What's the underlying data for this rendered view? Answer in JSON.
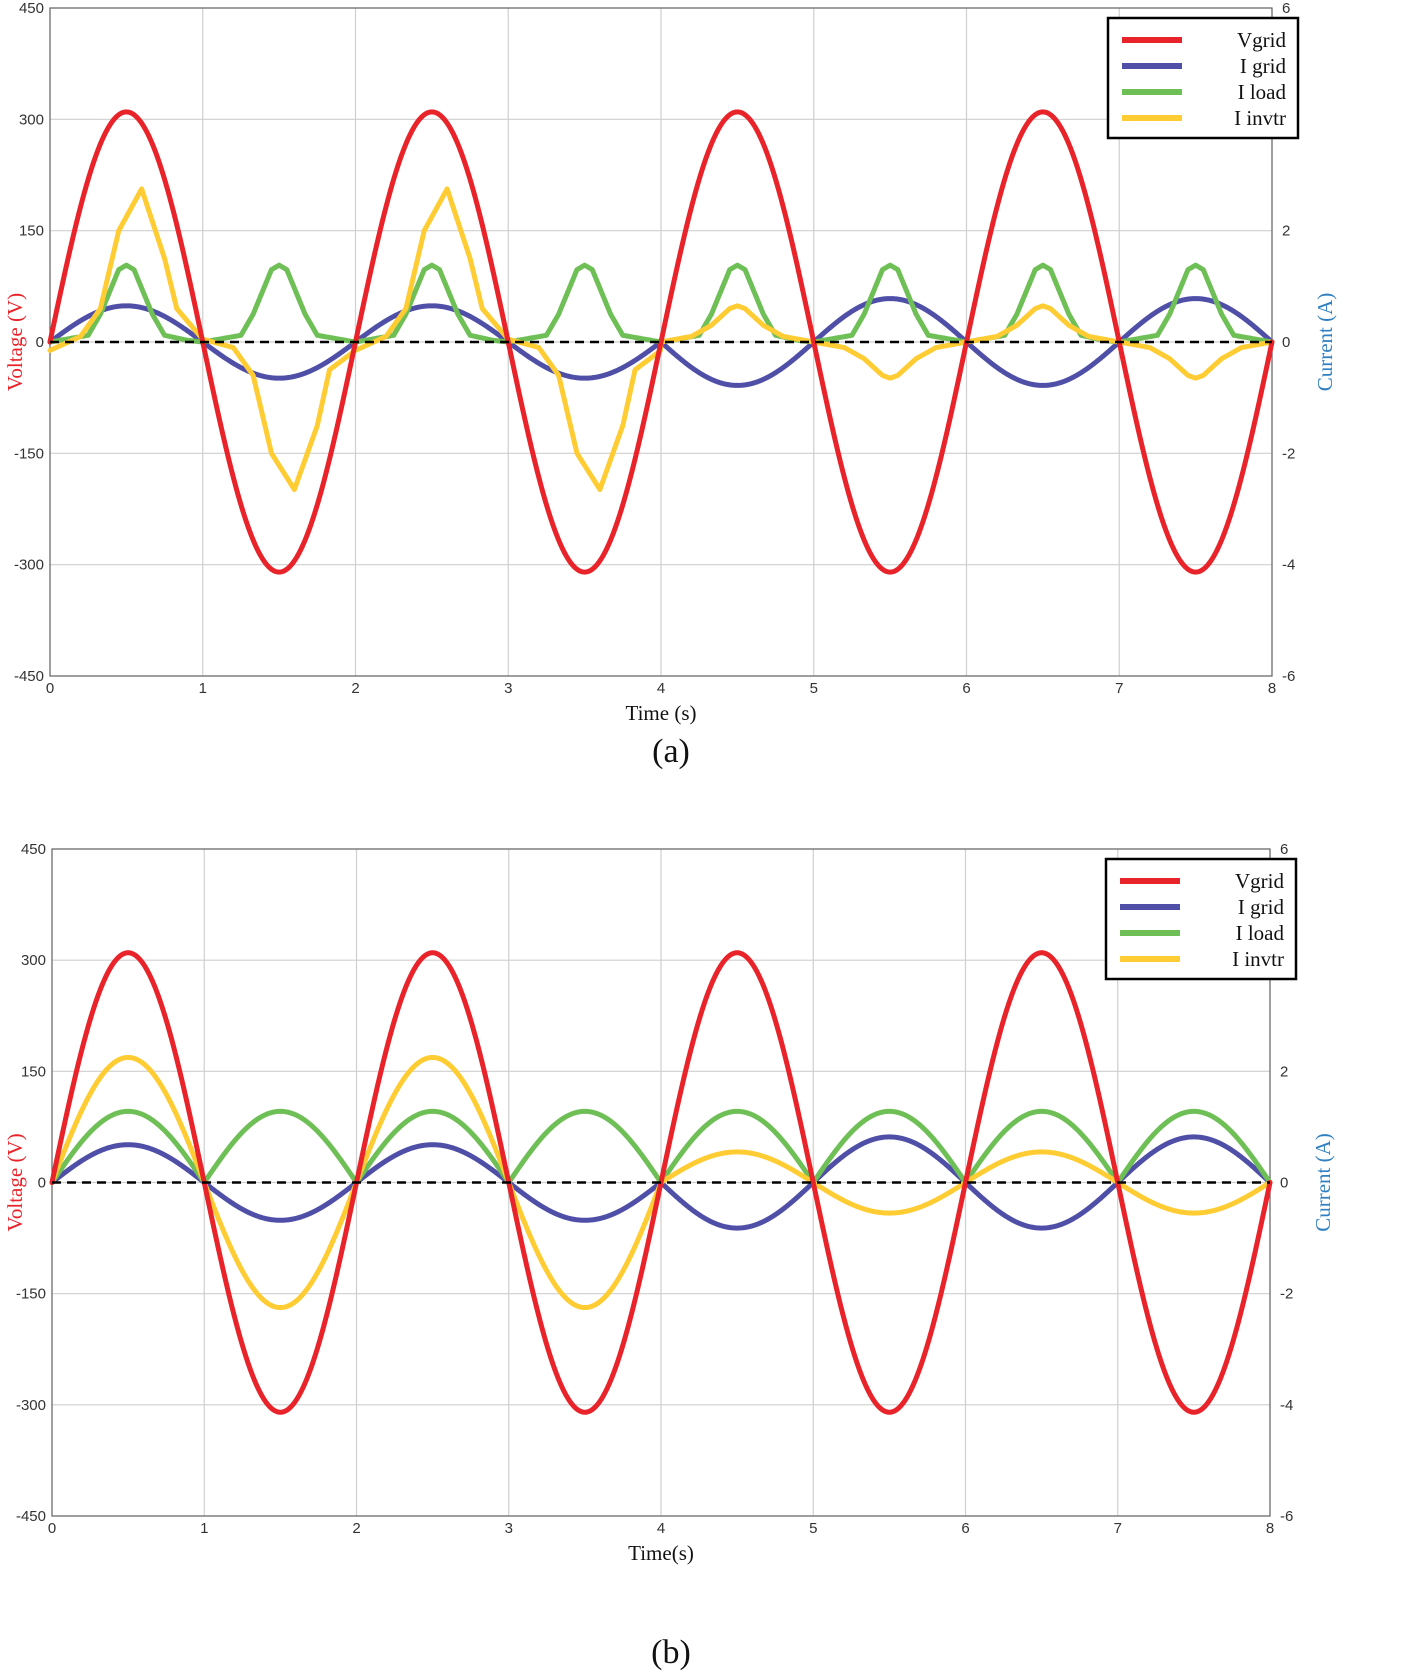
{
  "colors": {
    "vgrid": "#e8232a",
    "igrid": "#4f4fa8",
    "iload": "#6ebf55",
    "invtr": "#ffcc33",
    "voltage_axis": "#e8232a",
    "current_axis": "#2f7fc1",
    "grid": "#cfcfcf",
    "zero_line": "#000000"
  },
  "chart_data": [
    {
      "type": "line",
      "panel_label": "(a)",
      "xlabel": "Time (s)",
      "ylabel_left": "Voltage (V)",
      "ylabel_right": "Current (A)",
      "xlim": [
        0,
        8
      ],
      "ylim_left": [
        -450,
        450
      ],
      "ylim_right": [
        -6,
        6
      ],
      "xticks": [
        "0",
        "1",
        "2",
        "3",
        "4",
        "5",
        "6",
        "7",
        "8"
      ],
      "yticks_left": [
        "450",
        "300",
        "150",
        "0",
        "-150",
        "-300",
        "-450"
      ],
      "yticks_right": [
        "6",
        "4",
        "2",
        "0",
        "-2",
        "-4",
        "-6"
      ],
      "grid": true,
      "legend_position": "top-right",
      "legend": [
        "Vgrid",
        "I grid",
        "I load",
        "I invtr"
      ],
      "series": [
        {
          "name": "Vgrid",
          "axis": "left",
          "color_key": "vgrid",
          "description": "sinusoid, period 2 s",
          "amplitude": 310,
          "period": 2
        },
        {
          "name": "I grid",
          "axis": "right",
          "color_key": "igrid",
          "description": "sinusoid in phase with Vgrid before t=4, opposite phase after t=4",
          "amp_before": 0.65,
          "amp_after": 0.78,
          "switch_at": 4
        },
        {
          "name": "I load",
          "axis": "right",
          "color_key": "iload",
          "description": "non-linear load current, peaks at every half cycle",
          "x": [
            0,
            0.25,
            0.33,
            0.45,
            0.5,
            0.55,
            0.67,
            0.75,
            0.9,
            1.0,
            1.25,
            1.33,
            1.45,
            1.5,
            1.55,
            1.67,
            1.75,
            2.0
          ],
          "y": [
            0,
            0.12,
            0.5,
            1.3,
            1.38,
            1.3,
            0.5,
            0.12,
            0.03,
            0,
            0.12,
            0.5,
            1.3,
            1.38,
            1.3,
            0.5,
            0.12,
            0
          ],
          "period": 2
        },
        {
          "name": "I invtr",
          "axis": "right",
          "color_key": "invtr",
          "description": "inverter current; large before t=4, small after t=4",
          "before": {
            "x": [
              0,
              0.2,
              0.33,
              0.45,
              0.6,
              0.75,
              0.83,
              1.0,
              1.2,
              1.33,
              1.45,
              1.6,
              1.75,
              1.83,
              2.0
            ],
            "y": [
              -0.15,
              0.1,
              0.6,
              2.0,
              2.75,
              1.5,
              0.6,
              0.05,
              -0.1,
              -0.6,
              -2.0,
              -2.65,
              -1.5,
              -0.5,
              -0.15
            ]
          },
          "after": {
            "x": [
              0,
              0.2,
              0.33,
              0.45,
              0.5,
              0.55,
              0.67,
              0.8,
              1.0,
              1.2,
              1.33,
              1.45,
              1.5,
              1.55,
              1.67,
              1.8,
              2.0
            ],
            "y": [
              0,
              0.1,
              0.3,
              0.6,
              0.65,
              0.6,
              0.3,
              0.1,
              0,
              -0.1,
              -0.3,
              -0.6,
              -0.65,
              -0.6,
              -0.3,
              -0.1,
              0
            ]
          },
          "switch_at": 4
        }
      ]
    },
    {
      "type": "line",
      "panel_label": "(b)",
      "xlabel": "Time(s)",
      "ylabel_left": "Voltage (V)",
      "ylabel_right": "Current (A)",
      "xlim": [
        0,
        8
      ],
      "ylim_left": [
        -450,
        450
      ],
      "ylim_right": [
        -6,
        6
      ],
      "xticks": [
        "0",
        "1",
        "2",
        "3",
        "4",
        "5",
        "6",
        "7",
        "8"
      ],
      "yticks_left": [
        "450",
        "300",
        "150",
        "0",
        "-150",
        "-300",
        "-450"
      ],
      "yticks_right": [
        "6",
        "4",
        "2",
        "0",
        "-2",
        "-4",
        "-6"
      ],
      "grid": true,
      "legend_position": "top-right",
      "legend": [
        "Vgrid",
        "I grid",
        "I load",
        "I invtr"
      ],
      "series": [
        {
          "name": "Vgrid",
          "axis": "left",
          "color_key": "vgrid",
          "description": "sinusoid, period 2 s",
          "amplitude": 310,
          "period": 2
        },
        {
          "name": "I grid",
          "axis": "right",
          "color_key": "igrid",
          "description": "in phase before t=4, opposite phase after t=4",
          "amp_before": 0.68,
          "amp_after": 0.82,
          "switch_at": 4
        },
        {
          "name": "I load",
          "axis": "right",
          "color_key": "iload",
          "description": "rectified sinusoid |sin|",
          "amplitude": 1.28,
          "period": 2
        },
        {
          "name": "I invtr",
          "axis": "right",
          "color_key": "invtr",
          "description": "sinusoid in phase with Vgrid, amplitude drops after t=4",
          "amp_before": 2.25,
          "amp_after": 0.55,
          "switch_at": 4
        }
      ]
    }
  ]
}
